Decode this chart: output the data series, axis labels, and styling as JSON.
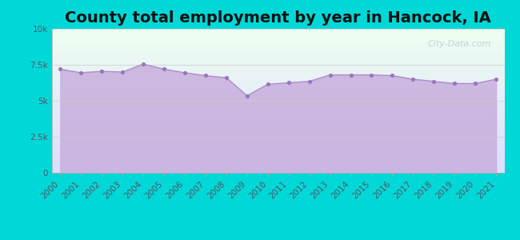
{
  "title": "County total employment by year in Hancock, IA",
  "years": [
    2000,
    2001,
    2002,
    2003,
    2004,
    2005,
    2006,
    2007,
    2008,
    2009,
    2010,
    2011,
    2012,
    2013,
    2014,
    2015,
    2016,
    2017,
    2018,
    2019,
    2020,
    2021
  ],
  "values": [
    7200,
    6950,
    7050,
    7000,
    7550,
    7200,
    6950,
    6750,
    6600,
    5350,
    6150,
    6250,
    6350,
    6800,
    6800,
    6800,
    6750,
    6500,
    6350,
    6200,
    6200,
    6500
  ],
  "ylim": [
    0,
    10000
  ],
  "yticks": [
    0,
    2500,
    5000,
    7500,
    10000
  ],
  "ytick_labels": [
    "0",
    "2.5k",
    "5k",
    "7.5k",
    "10k"
  ],
  "line_color": "#b090cc",
  "fill_color_top": "#c8aedd",
  "fill_color_bottom": "#c8aedd",
  "fill_alpha": 0.85,
  "marker_color": "#9977bb",
  "marker_size": 14,
  "bg_outer": "#00d8d8",
  "bg_plot_grad_top": "#e8ffe8",
  "bg_plot_grad_bottom": "#dde8ff",
  "watermark": "City-Data.com",
  "title_fontsize": 14,
  "title_color": "#111111",
  "tick_label_color": "#555566",
  "tick_fontsize": 7.5
}
